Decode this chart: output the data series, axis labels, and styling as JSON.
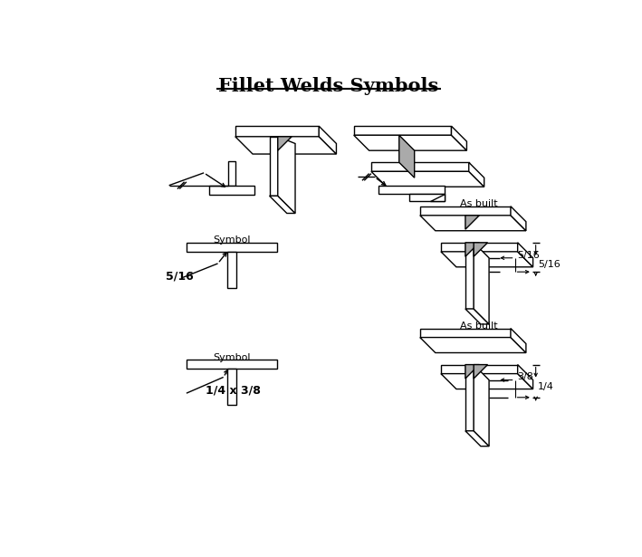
{
  "title": "Fillet Welds Symbols",
  "title_fontsize": 15,
  "background_color": "#ffffff",
  "line_color": "#000000",
  "weld_fill_color": "#aaaaaa",
  "symbol_label": "Symbol",
  "asbuilt_label": "As built",
  "label_fontsize": 8,
  "dim_516": "5/16",
  "dim_38": "3/8",
  "dim_14x38": "1/4 x 3/8",
  "dim_14": "1/4"
}
